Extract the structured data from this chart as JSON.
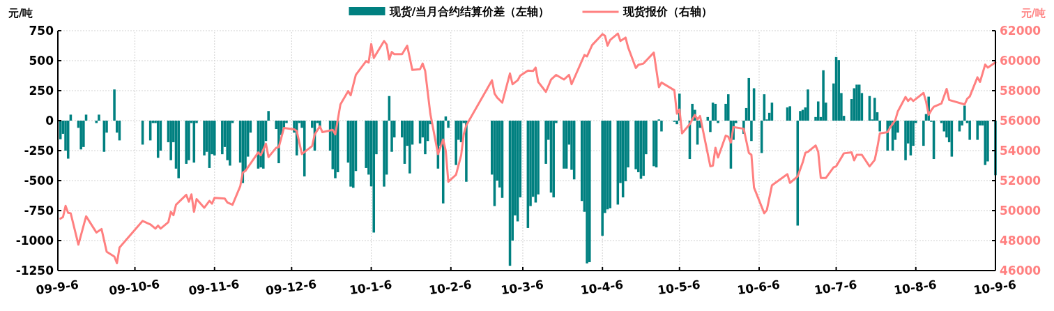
{
  "chart_data": {
    "type": "bar",
    "ylabel": "元/吨",
    "y2label": "元/吨",
    "legend": "top",
    "grid": true,
    "xlim": [
      "2009-09-06",
      "2010-09-06"
    ],
    "xticks": [
      {
        "value": "2009-09-06",
        "label": "09-9-6"
      },
      {
        "value": "2009-10-06",
        "label": "09-10-6"
      },
      {
        "value": "2009-11-06",
        "label": "09-11-6"
      },
      {
        "value": "2009-12-06",
        "label": "09-12-6"
      },
      {
        "value": "2010-01-06",
        "label": "10-1-6"
      },
      {
        "value": "2010-02-06",
        "label": "10-2-6"
      },
      {
        "value": "2010-03-06",
        "label": "10-3-6"
      },
      {
        "value": "2010-04-06",
        "label": "10-4-6"
      },
      {
        "value": "2010-05-06",
        "label": "10-5-6"
      },
      {
        "value": "2010-06-06",
        "label": "10-6-6"
      },
      {
        "value": "2010-07-06",
        "label": "10-7-6"
      },
      {
        "value": "2010-08-06",
        "label": "10-8-6"
      },
      {
        "value": "2010-09-06",
        "label": "10-9-6"
      }
    ],
    "ylim": [
      -1250,
      750
    ],
    "yticks": [
      -1250,
      -1000,
      -750,
      -500,
      -250,
      0,
      250,
      500,
      750
    ],
    "y2lim": [
      46000,
      62000
    ],
    "y2ticks": [
      46000,
      48000,
      50000,
      52000,
      54000,
      56000,
      58000,
      60000,
      62000
    ],
    "series": [
      {
        "name": "现货/当月合约结算价差（左轴）",
        "color": "#008080",
        "x": [
          "2009-09-07",
          "2009-09-08",
          "2009-09-09",
          "2009-09-10",
          "2009-09-11",
          "2009-09-14",
          "2009-09-15",
          "2009-09-16",
          "2009-09-17",
          "2009-09-21",
          "2009-09-22",
          "2009-09-24",
          "2009-09-25",
          "2009-09-28",
          "2009-09-29",
          "2009-09-30",
          "2009-10-09",
          "2009-10-12",
          "2009-10-13",
          "2009-10-14",
          "2009-10-15",
          "2009-10-16",
          "2009-10-19",
          "2009-10-20",
          "2009-10-21",
          "2009-10-22",
          "2009-10-23",
          "2009-10-26",
          "2009-10-27",
          "2009-10-28",
          "2009-10-29",
          "2009-10-30",
          "2009-11-02",
          "2009-11-03",
          "2009-11-04",
          "2009-11-05",
          "2009-11-06",
          "2009-11-09",
          "2009-11-10",
          "2009-11-11",
          "2009-11-12",
          "2009-11-13",
          "2009-11-16",
          "2009-11-17",
          "2009-11-18",
          "2009-11-19",
          "2009-11-20",
          "2009-11-23",
          "2009-11-24",
          "2009-11-25",
          "2009-11-26",
          "2009-11-27",
          "2009-11-30",
          "2009-12-01",
          "2009-12-02",
          "2009-12-03",
          "2009-12-04",
          "2009-12-07",
          "2009-12-08",
          "2009-12-09",
          "2009-12-10",
          "2009-12-11",
          "2009-12-14",
          "2009-12-15",
          "2009-12-16",
          "2009-12-17",
          "2009-12-21",
          "2009-12-22",
          "2009-12-23",
          "2009-12-24",
          "2009-12-28",
          "2009-12-29",
          "2009-12-30",
          "2009-12-31",
          "2010-01-04",
          "2010-01-05",
          "2010-01-06",
          "2010-01-07",
          "2010-01-08",
          "2010-01-11",
          "2010-01-12",
          "2010-01-13",
          "2010-01-14",
          "2010-01-15",
          "2010-01-18",
          "2010-01-19",
          "2010-01-20",
          "2010-01-21",
          "2010-01-22",
          "2010-01-25",
          "2010-01-26",
          "2010-01-27",
          "2010-01-28",
          "2010-01-29",
          "2010-02-01",
          "2010-02-02",
          "2010-02-03",
          "2010-02-04",
          "2010-02-05",
          "2010-02-08",
          "2010-02-09",
          "2010-02-10",
          "2010-02-11",
          "2010-02-12",
          "2010-02-22",
          "2010-02-23",
          "2010-02-24",
          "2010-02-25",
          "2010-02-26",
          "2010-03-01",
          "2010-03-02",
          "2010-03-03",
          "2010-03-04",
          "2010-03-05",
          "2010-03-08",
          "2010-03-09",
          "2010-03-10",
          "2010-03-11",
          "2010-03-12",
          "2010-03-15",
          "2010-03-16",
          "2010-03-17",
          "2010-03-18",
          "2010-03-19",
          "2010-03-22",
          "2010-03-23",
          "2010-03-24",
          "2010-03-25",
          "2010-03-26",
          "2010-03-29",
          "2010-03-30",
          "2010-03-31",
          "2010-04-01",
          "2010-04-06",
          "2010-04-07",
          "2010-04-08",
          "2010-04-09",
          "2010-04-12",
          "2010-04-13",
          "2010-04-14",
          "2010-04-15",
          "2010-04-16",
          "2010-04-19",
          "2010-04-20",
          "2010-04-21",
          "2010-04-22",
          "2010-04-23",
          "2010-04-26",
          "2010-04-27",
          "2010-04-28",
          "2010-04-29",
          "2010-05-04",
          "2010-05-05",
          "2010-05-06",
          "2010-05-10",
          "2010-05-11",
          "2010-05-12",
          "2010-05-13",
          "2010-05-14",
          "2010-05-17",
          "2010-05-18",
          "2010-05-19",
          "2010-05-20",
          "2010-05-21",
          "2010-05-24",
          "2010-05-25",
          "2010-05-26",
          "2010-05-27",
          "2010-05-28",
          "2010-05-31",
          "2010-06-01",
          "2010-06-02",
          "2010-06-03",
          "2010-06-04",
          "2010-06-07",
          "2010-06-08",
          "2010-06-09",
          "2010-06-10",
          "2010-06-11",
          "2010-06-17",
          "2010-06-18",
          "2010-06-21",
          "2010-06-22",
          "2010-06-23",
          "2010-06-24",
          "2010-06-25",
          "2010-06-28",
          "2010-06-29",
          "2010-06-30",
          "2010-07-01",
          "2010-07-02",
          "2010-07-05",
          "2010-07-06",
          "2010-07-07",
          "2010-07-08",
          "2010-07-09",
          "2010-07-12",
          "2010-07-13",
          "2010-07-14",
          "2010-07-15",
          "2010-07-16",
          "2010-07-19",
          "2010-07-20",
          "2010-07-21",
          "2010-07-22",
          "2010-07-23",
          "2010-07-26",
          "2010-07-27",
          "2010-07-28",
          "2010-07-29",
          "2010-07-30",
          "2010-08-02",
          "2010-08-03",
          "2010-08-04",
          "2010-08-05",
          "2010-08-06",
          "2010-08-09",
          "2010-08-10",
          "2010-08-11",
          "2010-08-12",
          "2010-08-13",
          "2010-08-16",
          "2010-08-17",
          "2010-08-18",
          "2010-08-19",
          "2010-08-20",
          "2010-08-23",
          "2010-08-24",
          "2010-08-25",
          "2010-08-26",
          "2010-08-27",
          "2010-08-30",
          "2010-08-31",
          "2010-09-01",
          "2010-09-02",
          "2010-09-03",
          "2010-09-06"
        ],
        "values": [
          -155,
          -110,
          -250,
          -317,
          50,
          -60,
          -240,
          -220,
          50,
          -20,
          50,
          -260,
          -100,
          260,
          -100,
          -165,
          -200,
          -165,
          -20,
          -20,
          -310,
          -250,
          -180,
          -330,
          -180,
          -400,
          -480,
          -360,
          -330,
          -20,
          -350,
          -20,
          -290,
          -260,
          -395,
          -280,
          -290,
          -280,
          -220,
          -330,
          -375,
          -20,
          -350,
          -520,
          -420,
          -300,
          -100,
          -400,
          -390,
          -400,
          -170,
          80,
          -70,
          -355,
          -120,
          -60,
          -20,
          -100,
          -290,
          -20,
          -60,
          -465,
          -60,
          -250,
          -20,
          -60,
          -250,
          -405,
          -480,
          -430,
          -350,
          -550,
          -560,
          -420,
          -395,
          -450,
          -548,
          -933,
          -280,
          -550,
          -450,
          205,
          -260,
          -140,
          -140,
          -360,
          -210,
          -440,
          -200,
          -190,
          -140,
          -280,
          -170,
          -30,
          -400,
          -210,
          -690,
          35,
          -60,
          -370,
          -160,
          -180,
          -20,
          -510,
          -450,
          -712,
          -500,
          -557,
          -644,
          -1210,
          -1000,
          -790,
          -840,
          -640,
          -895,
          -712,
          -635,
          -683,
          -615,
          -360,
          -160,
          -600,
          -640,
          -20,
          -400,
          -400,
          -200,
          -410,
          -490,
          -670,
          -760,
          -1190,
          -1180,
          -960,
          -770,
          -740,
          -730,
          -700,
          -520,
          -640,
          -505,
          -390,
          -405,
          -430,
          -485,
          -460,
          -280,
          -380,
          -390,
          10,
          -90,
          -10,
          -30,
          225,
          -320,
          140,
          90,
          -200,
          -60,
          30,
          -95,
          150,
          140,
          -20,
          140,
          220,
          -400,
          -160,
          -20,
          -110,
          105,
          355,
          -170,
          270,
          -270,
          220,
          10,
          65,
          150,
          110,
          120,
          -875,
          80,
          90,
          110,
          260,
          30,
          160,
          30,
          420,
          150,
          310,
          530,
          505,
          230,
          40,
          180,
          270,
          300,
          300,
          230,
          205,
          10,
          190,
          70,
          -90,
          -250,
          -50,
          -250,
          -160,
          -100,
          -330,
          -190,
          -290,
          -210,
          -20,
          -210,
          55,
          200,
          -10,
          -320,
          -20,
          -90,
          -140,
          -180,
          -300,
          -90,
          -40,
          125,
          -20,
          -160,
          -160,
          -40,
          -40,
          -370,
          -340,
          -455
        ]
      },
      {
        "name": "现货报价（右轴）",
        "type": "line",
        "axis": "y2",
        "color": "#ff8080",
        "x": [
          "2009-09-07",
          "2009-09-08",
          "2009-09-09",
          "2009-09-10",
          "2009-09-11",
          "2009-09-14",
          "2009-09-17",
          "2009-09-21",
          "2009-09-23",
          "2009-09-25",
          "2009-09-28",
          "2009-09-29",
          "2009-09-30",
          "2009-10-09",
          "2009-10-12",
          "2009-10-14",
          "2009-10-15",
          "2009-10-16",
          "2009-10-19",
          "2009-10-20",
          "2009-10-21",
          "2009-10-22",
          "2009-10-26",
          "2009-10-27",
          "2009-10-28",
          "2009-10-29",
          "2009-10-30",
          "2009-11-02",
          "2009-11-04",
          "2009-11-05",
          "2009-11-06",
          "2009-11-10",
          "2009-11-11",
          "2009-11-13",
          "2009-11-16",
          "2009-11-17",
          "2009-11-18",
          "2009-11-23",
          "2009-11-24",
          "2009-11-26",
          "2009-11-27",
          "2009-11-30",
          "2009-12-01",
          "2009-12-03",
          "2009-12-07",
          "2009-12-08",
          "2009-12-10",
          "2009-12-14",
          "2009-12-15",
          "2009-12-17",
          "2009-12-18",
          "2009-12-22",
          "2009-12-23",
          "2009-12-25",
          "2009-12-28",
          "2009-12-29",
          "2009-12-31",
          "2010-01-04",
          "2010-01-05",
          "2010-01-06",
          "2010-01-07",
          "2010-01-11",
          "2010-01-12",
          "2010-01-13",
          "2010-01-14",
          "2010-01-15",
          "2010-01-18",
          "2010-01-20",
          "2010-01-22",
          "2010-01-25",
          "2010-01-26",
          "2010-01-27",
          "2010-01-29",
          "2010-02-01",
          "2010-02-03",
          "2010-02-04",
          "2010-02-05",
          "2010-02-08",
          "2010-02-10",
          "2010-02-11",
          "2010-02-12",
          "2010-02-22",
          "2010-02-23",
          "2010-02-24",
          "2010-02-26",
          "2010-03-01",
          "2010-03-02",
          "2010-03-04",
          "2010-03-05",
          "2010-03-08",
          "2010-03-10",
          "2010-03-11",
          "2010-03-12",
          "2010-03-15",
          "2010-03-17",
          "2010-03-19",
          "2010-03-22",
          "2010-03-24",
          "2010-03-25",
          "2010-03-30",
          "2010-03-31",
          "2010-04-02",
          "2010-04-06",
          "2010-04-07",
          "2010-04-08",
          "2010-04-09",
          "2010-04-12",
          "2010-04-13",
          "2010-04-15",
          "2010-04-16",
          "2010-04-19",
          "2010-04-20",
          "2010-04-22",
          "2010-04-26",
          "2010-04-28",
          "2010-04-29",
          "2010-05-04",
          "2010-05-05",
          "2010-05-06",
          "2010-05-07",
          "2010-05-10",
          "2010-05-12",
          "2010-05-13",
          "2010-05-14",
          "2010-05-18",
          "2010-05-19",
          "2010-05-20",
          "2010-05-21",
          "2010-05-24",
          "2010-05-25",
          "2010-05-26",
          "2010-05-27",
          "2010-05-31",
          "2010-06-02",
          "2010-06-03",
          "2010-06-04",
          "2010-06-08",
          "2010-06-09",
          "2010-06-11",
          "2010-06-17",
          "2010-06-18",
          "2010-06-21",
          "2010-06-23",
          "2010-06-24",
          "2010-06-25",
          "2010-06-28",
          "2010-06-29",
          "2010-06-30",
          "2010-07-02",
          "2010-07-05",
          "2010-07-06",
          "2010-07-09",
          "2010-07-12",
          "2010-07-13",
          "2010-07-14",
          "2010-07-16",
          "2010-07-19",
          "2010-07-21",
          "2010-07-22",
          "2010-07-23",
          "2010-07-26",
          "2010-07-27",
          "2010-07-29",
          "2010-07-30",
          "2010-08-02",
          "2010-08-03",
          "2010-08-04",
          "2010-08-05",
          "2010-08-09",
          "2010-08-10",
          "2010-08-11",
          "2010-08-12",
          "2010-08-13",
          "2010-08-16",
          "2010-08-18",
          "2010-08-19",
          "2010-08-25",
          "2010-08-26",
          "2010-08-27",
          "2010-08-30",
          "2010-08-31",
          "2010-09-02",
          "2010-09-03",
          "2010-09-06"
        ],
        "values": [
          49460,
          49570,
          50310,
          49850,
          49820,
          47730,
          49620,
          48540,
          48770,
          47260,
          46930,
          46490,
          47540,
          49310,
          49080,
          48800,
          49000,
          48800,
          49230,
          49920,
          49690,
          50390,
          51050,
          50590,
          51080,
          49920,
          50770,
          50190,
          50650,
          50460,
          50850,
          50800,
          50540,
          50390,
          51620,
          52540,
          52650,
          53880,
          53690,
          54460,
          53570,
          54190,
          54230,
          55510,
          55420,
          55310,
          53770,
          54310,
          55080,
          55620,
          55230,
          55380,
          55080,
          57080,
          57970,
          57690,
          59050,
          59970,
          59880,
          61110,
          60180,
          61310,
          61080,
          60080,
          60580,
          60430,
          60430,
          61000,
          59380,
          59430,
          59810,
          59310,
          56460,
          53770,
          54740,
          54000,
          51920,
          52390,
          53690,
          55080,
          55690,
          58690,
          57810,
          57540,
          57200,
          59150,
          58430,
          58690,
          59000,
          59340,
          59310,
          59540,
          58580,
          57920,
          58740,
          59050,
          58740,
          59050,
          58430,
          60380,
          60280,
          61040,
          61770,
          61660,
          61000,
          61380,
          61810,
          61310,
          61540,
          60890,
          59510,
          59720,
          59810,
          60540,
          58230,
          58540,
          58030,
          56460,
          56740,
          55150,
          55770,
          56380,
          56080,
          56310,
          52950,
          53000,
          54190,
          53540,
          55000,
          54920,
          54540,
          55570,
          55460,
          53850,
          53720,
          51540,
          49820,
          50030,
          51690,
          52430,
          51850,
          52280,
          53230,
          53850,
          53920,
          54340,
          53920,
          52180,
          52180,
          52890,
          52950,
          53820,
          53880,
          53350,
          53720,
          53720,
          52950,
          53380,
          54190,
          55150,
          55230,
          55540,
          56030,
          56620,
          57580,
          57310,
          57490,
          57310,
          57850,
          57260,
          56380,
          56690,
          56920,
          57150,
          58120,
          57380,
          57080,
          57460,
          57610,
          58890,
          58580,
          59740,
          59540,
          59880
        ]
      }
    ]
  }
}
